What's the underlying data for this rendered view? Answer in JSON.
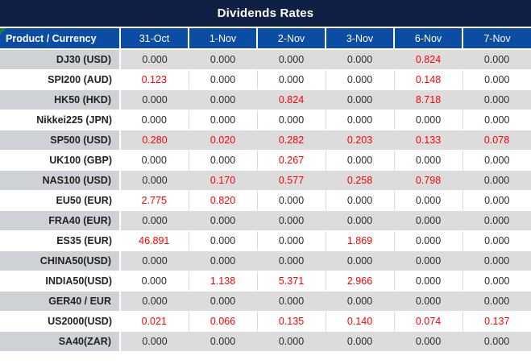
{
  "title": "Dividends Rates",
  "columns": [
    "Product / Currency",
    "31-Oct",
    "1-Nov",
    "2-Nov",
    "3-Nov",
    "6-Nov",
    "7-Nov"
  ],
  "rows": [
    {
      "product": "DJ30 (USD)",
      "values": [
        "0.000",
        "0.000",
        "0.000",
        "0.000",
        "0.824",
        "0.000"
      ]
    },
    {
      "product": "SPI200 (AUD)",
      "values": [
        "0.123",
        "0.000",
        "0.000",
        "0.000",
        "0.148",
        "0.000"
      ]
    },
    {
      "product": "HK50 (HKD)",
      "values": [
        "0.000",
        "0.000",
        "0.824",
        "0.000",
        "8.718",
        "0.000"
      ]
    },
    {
      "product": "Nikkei225 (JPN)",
      "values": [
        "0.000",
        "0.000",
        "0.000",
        "0.000",
        "0.000",
        "0.000"
      ]
    },
    {
      "product": "SP500 (USD)",
      "values": [
        "0.280",
        "0.020",
        "0.282",
        "0.203",
        "0.133",
        "0.078"
      ]
    },
    {
      "product": "UK100 (GBP)",
      "values": [
        "0.000",
        "0.000",
        "0.267",
        "0.000",
        "0.000",
        "0.000"
      ]
    },
    {
      "product": "NAS100 (USD)",
      "values": [
        "0.000",
        "0.170",
        "0.577",
        "0.258",
        "0.798",
        "0.000"
      ]
    },
    {
      "product": "EU50 (EUR)",
      "values": [
        "2.775",
        "0.820",
        "0.000",
        "0.000",
        "0.000",
        "0.000"
      ]
    },
    {
      "product": "FRA40 (EUR)",
      "values": [
        "0.000",
        "0.000",
        "0.000",
        "0.000",
        "0.000",
        "0.000"
      ]
    },
    {
      "product": "ES35 (EUR)",
      "values": [
        "46.891",
        "0.000",
        "0.000",
        "1.869",
        "0.000",
        "0.000"
      ]
    },
    {
      "product": "CHINA50(USD)",
      "values": [
        "0.000",
        "0.000",
        "0.000",
        "0.000",
        "0.000",
        "0.000"
      ]
    },
    {
      "product": "INDIA50(USD)",
      "values": [
        "0.000",
        "1.138",
        "5.371",
        "2.966",
        "0.000",
        "0.000"
      ]
    },
    {
      "product": "GER40 / EUR",
      "values": [
        "0.000",
        "0.000",
        "0.000",
        "0.000",
        "0.000",
        "0.000"
      ]
    },
    {
      "product": "US2000(USD)",
      "values": [
        "0.021",
        "0.066",
        "0.135",
        "0.140",
        "0.074",
        "0.137"
      ]
    },
    {
      "product": "SA40(ZAR)",
      "values": [
        "0.000",
        "0.000",
        "0.000",
        "0.000",
        "0.000",
        "0.000"
      ]
    }
  ],
  "colors": {
    "title_bg": "#0f2044",
    "header_bg": "#0b4da2",
    "nonzero_value": "#ff0000",
    "gray_row_bg": "#dcdcdc",
    "gray_row_product_bg": "#ced2d6",
    "corner_marker_green": "#1e7e32"
  },
  "icons": {
    "corner_marker": "green-corner-triangle"
  }
}
